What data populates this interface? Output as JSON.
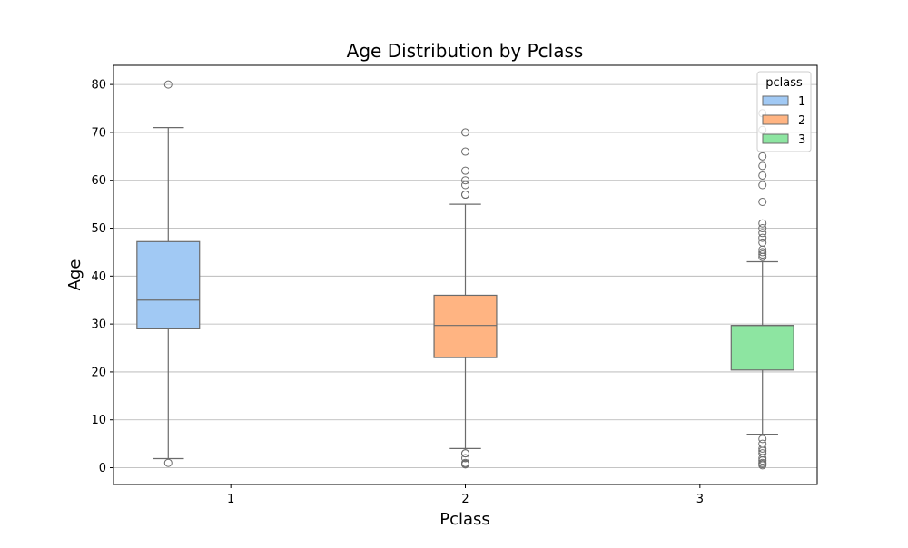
{
  "chart_data": {
    "type": "box",
    "title": "Age Distribution by Pclass",
    "xlabel": "Pclass",
    "ylabel": "Age",
    "categories": [
      "1",
      "2",
      "3"
    ],
    "ylim": [
      -3.5,
      84
    ],
    "yticks": [
      0,
      10,
      20,
      30,
      40,
      50,
      60,
      70,
      80
    ],
    "grid": {
      "y": true,
      "x": false
    },
    "legend": {
      "title": "pclass",
      "placement": "top-right",
      "entries": [
        "1",
        "2",
        "3"
      ]
    },
    "series": [
      {
        "name": "1",
        "color": "#a1c9f4",
        "category_index": 0,
        "whisker_low": 1.9,
        "q1": 29,
        "median": 35,
        "q3": 47.2,
        "whisker_high": 71,
        "outliers": [
          80,
          1
        ]
      },
      {
        "name": "2",
        "color": "#ffb482",
        "category_index": 1,
        "whisker_low": 4,
        "q1": 23,
        "median": 29.7,
        "q3": 36,
        "whisker_high": 55,
        "outliers": [
          70,
          66,
          62,
          60,
          59,
          57,
          57,
          3,
          3,
          2,
          1,
          0.8,
          0.7
        ]
      },
      {
        "name": "3",
        "color": "#8de5a1",
        "category_index": 2,
        "whisker_low": 7,
        "q1": 20.4,
        "median": 29.7,
        "q3": 29.7,
        "whisker_high": 43,
        "outliers": [
          74,
          70.5,
          65,
          63,
          61,
          59,
          55.5,
          51,
          50,
          49,
          48,
          47,
          45.5,
          45,
          44.5,
          44,
          6,
          5,
          4,
          3.5,
          3,
          2,
          1.5,
          1,
          0.75,
          0.5
        ]
      }
    ]
  }
}
